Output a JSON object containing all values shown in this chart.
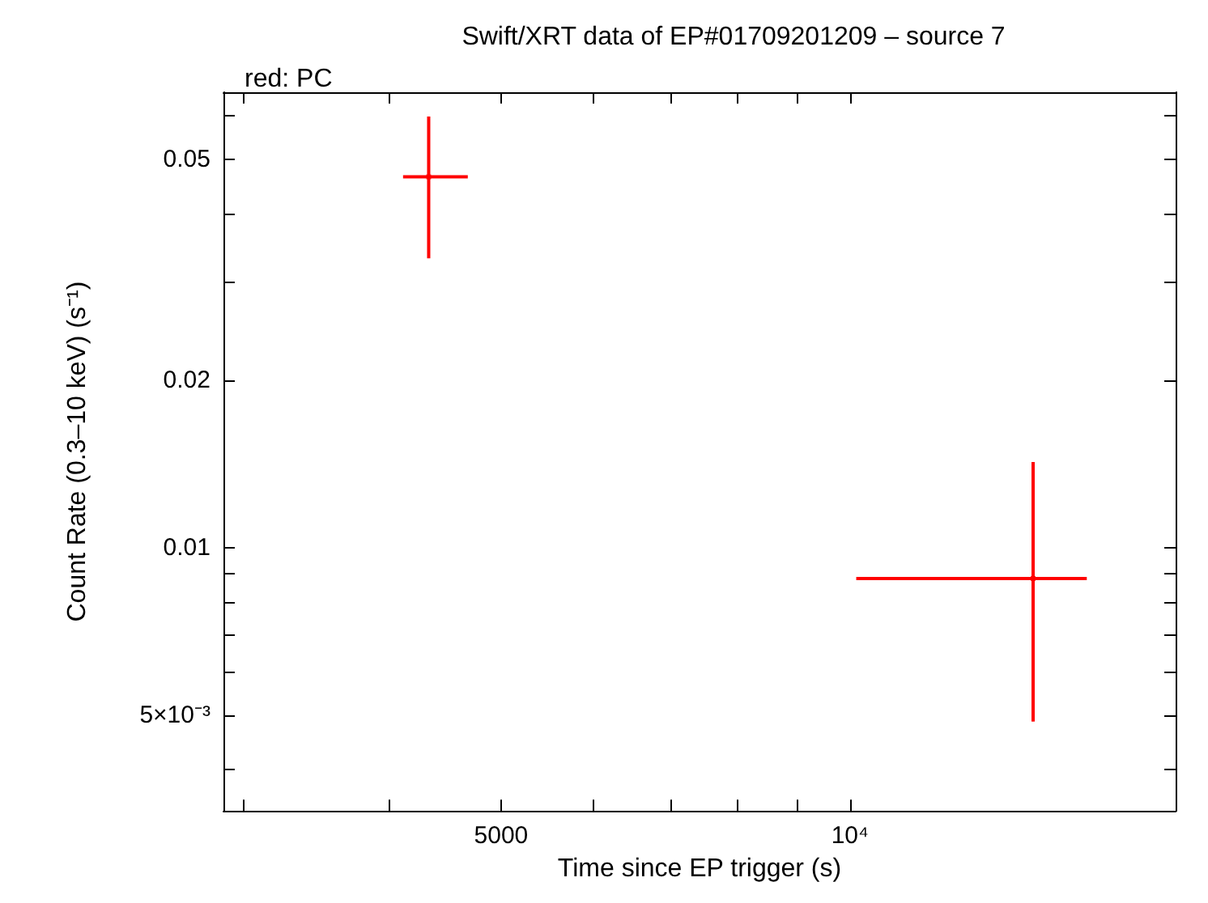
{
  "chart_data": {
    "type": "scatter",
    "title": "Swift/XRT data of EP#01709201209 – source 7",
    "subtitle": "red: PC",
    "xlabel": "Time since EP trigger (s)",
    "ylabel": "Count Rate (0.3–10 keV) (s⁻¹)",
    "log": "xy",
    "grid": false,
    "xlim": [
      2880,
      19100
    ],
    "ylim": [
      0.00337,
      0.066
    ],
    "xticks": [
      {
        "value": 3000,
        "label": null
      },
      {
        "value": 4000,
        "label": null
      },
      5000,
      {
        "value": 6000,
        "label": null
      },
      {
        "value": 7000,
        "label": null
      },
      {
        "value": 8000,
        "label": null
      },
      {
        "value": 9000,
        "label": null
      },
      {
        "value": 10000,
        "label": "10⁴"
      }
    ],
    "yticks": [
      {
        "value": 0.004,
        "label": null
      },
      {
        "value": 0.005,
        "label": "5×10⁻³"
      },
      {
        "value": 0.006,
        "label": null
      },
      {
        "value": 0.007,
        "label": null
      },
      {
        "value": 0.008,
        "label": null
      },
      {
        "value": 0.009,
        "label": null
      },
      0.01,
      0.02,
      {
        "value": 0.03,
        "label": null
      },
      {
        "value": 0.04,
        "label": null
      },
      0.05,
      {
        "value": 0.06,
        "label": null
      }
    ],
    "series": [
      {
        "color": "#ff0000",
        "x": [
          4330,
          14390
        ],
        "values": [
          0.0465,
          0.00882
        ],
        "errors": [
          [
            0.0332,
            0.0597
          ],
          [
            0.00488,
            0.01428
          ]
        ],
        "xerrors": [
          [
            4115,
            4680
          ],
          [
            10126,
            16010
          ]
        ]
      }
    ]
  }
}
